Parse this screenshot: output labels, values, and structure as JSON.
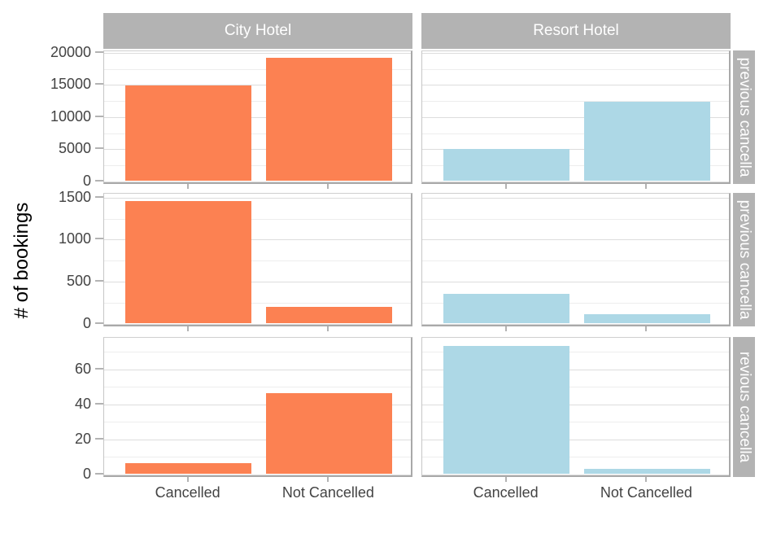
{
  "chart_data": {
    "type": "bar",
    "title": "",
    "ylabel": "# of bookings",
    "xlabel": "",
    "categories": [
      "Cancelled",
      "Not Cancelled"
    ],
    "legend": "none",
    "grid": true,
    "facet_cols": [
      "City Hotel",
      "Resort Hotel"
    ],
    "facet_rows": [
      "previous cancella",
      "previous cancella",
      "revious cancella"
    ],
    "row_scales": [
      {
        "ticks": [
          0,
          5000,
          10000,
          15000,
          20000
        ],
        "minor_ticks": [
          2500,
          7500,
          12500,
          17500
        ],
        "ymax_panel": 20250
      },
      {
        "ticks": [
          0,
          500,
          1000,
          1500
        ],
        "minor_ticks": [
          250,
          750,
          1250
        ],
        "ymax_panel": 1545
      },
      {
        "ticks": [
          0,
          20,
          40,
          60
        ],
        "minor_ticks": [
          10,
          30,
          50,
          70
        ],
        "ymax_panel": 78
      }
    ],
    "panels": [
      {
        "row": 0,
        "col": 0,
        "values": [
          14800,
          19100
        ]
      },
      {
        "row": 0,
        "col": 1,
        "values": [
          5000,
          12300
        ]
      },
      {
        "row": 1,
        "col": 0,
        "values": [
          1450,
          190
        ]
      },
      {
        "row": 1,
        "col": 1,
        "values": [
          350,
          110
        ]
      },
      {
        "row": 2,
        "col": 0,
        "values": [
          6,
          46
        ]
      },
      {
        "row": 2,
        "col": 1,
        "values": [
          73,
          3
        ]
      }
    ],
    "series_colors": {
      "City Hotel": "#FC8152",
      "Resort Hotel": "#ADD8E6"
    }
  },
  "style_colors": {
    "strip_background": "#B3B3B3",
    "strip_text": "#FFFFFF",
    "axis_text": "#434343",
    "axis_title": "#000000"
  }
}
